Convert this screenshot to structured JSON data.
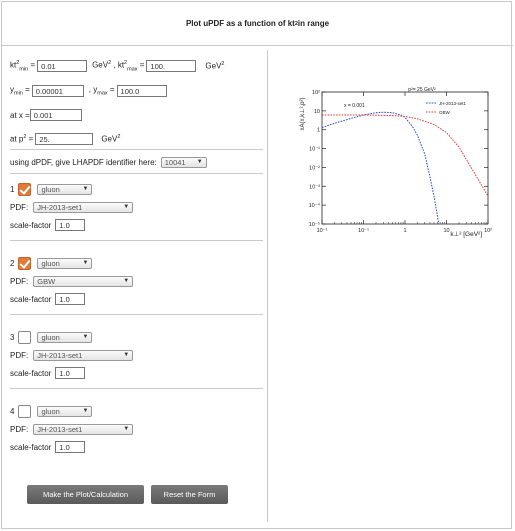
{
  "header": {
    "title": "Plot uPDF as a function of kt",
    "title_sup": "2",
    "title_suffix": " in range"
  },
  "form": {
    "kt": {
      "min_label": "kt",
      "min_sup": "2",
      "min_sub": "min",
      "eq": " = ",
      "min_value": "0.01",
      "unit": "GeV",
      "unit_sup": "2",
      "sep": " , kt",
      "max_sup": "2",
      "max_sub": "max",
      "max_value": "100."
    },
    "y": {
      "min_label": "y",
      "min_sub": "min",
      "eq": " = ",
      "min_value": "0.00001",
      "sep": " , y",
      "max_sub": "max",
      "max_value": "100.0"
    },
    "x": {
      "label": "at x = ",
      "value": "0.001"
    },
    "p2": {
      "label": "at p",
      "label_sup": "2",
      "eq": " = ",
      "value": "25.",
      "unit": "GeV",
      "unit_sup": "2"
    },
    "lhapdf": {
      "label": "using dPDF, give LHAPDF identifier here:",
      "value": "10041"
    },
    "pdf_label": "PDF:",
    "scale_label": "scale-factor",
    "entries": [
      {
        "num": "1",
        "checked": true,
        "parton": "gluon",
        "pdf": "JH-2013-set1",
        "scale": "1.0"
      },
      {
        "num": "2",
        "checked": true,
        "parton": "gluon",
        "pdf": "GBW",
        "scale": "1.0"
      },
      {
        "num": "3",
        "checked": false,
        "parton": "gluon",
        "pdf": "JH-2013-set1",
        "scale": "1.0"
      },
      {
        "num": "4",
        "checked": false,
        "parton": "gluon",
        "pdf": "JH-2013-set1",
        "scale": "1.0"
      }
    ],
    "buttons": {
      "plot": "Make the Plot/Calculation",
      "reset": "Reset the Form"
    }
  },
  "chart_data": {
    "type": "line",
    "title": "p²= 25 GeV²",
    "annotation": "x = 0.001",
    "xlabel": "k⊥² [GeV²]",
    "ylabel": "xA(x,k⊥²,p²)",
    "xscale": "log",
    "yscale": "log",
    "xlim": [
      0.01,
      100
    ],
    "ylim": [
      1e-05,
      100
    ],
    "x_ticks": [
      "10⁻¹",
      "10⁻¹",
      "1",
      "10",
      "10²"
    ],
    "y_ticks": [
      "10²",
      "10",
      "1",
      "10⁻¹",
      "10⁻²",
      "10⁻³",
      "10⁻⁴",
      "10⁻⁵"
    ],
    "legend_position": "top-right",
    "series": [
      {
        "name": "JH-2013-set1",
        "color": "#2e4bd6",
        "x": [
          0.01,
          0.02,
          0.05,
          0.1,
          0.2,
          0.3,
          0.5,
          0.8,
          1,
          1.5,
          2,
          3,
          4,
          5,
          6,
          6.5
        ],
        "y": [
          1.3,
          2.2,
          4.0,
          6.0,
          8.0,
          8.5,
          8.0,
          6.0,
          4.5,
          1.5,
          0.5,
          0.05,
          0.003,
          0.0003,
          3e-05,
          1e-05
        ]
      },
      {
        "name": "GBW",
        "color": "#e23b3b",
        "x": [
          0.01,
          0.02,
          0.05,
          0.1,
          0.2,
          0.5,
          1,
          2,
          5,
          10,
          20,
          50,
          100
        ],
        "y": [
          6.0,
          6.0,
          6.0,
          6.0,
          5.9,
          5.6,
          5.0,
          3.8,
          1.9,
          0.7,
          0.12,
          0.004,
          0.0003
        ]
      }
    ]
  }
}
